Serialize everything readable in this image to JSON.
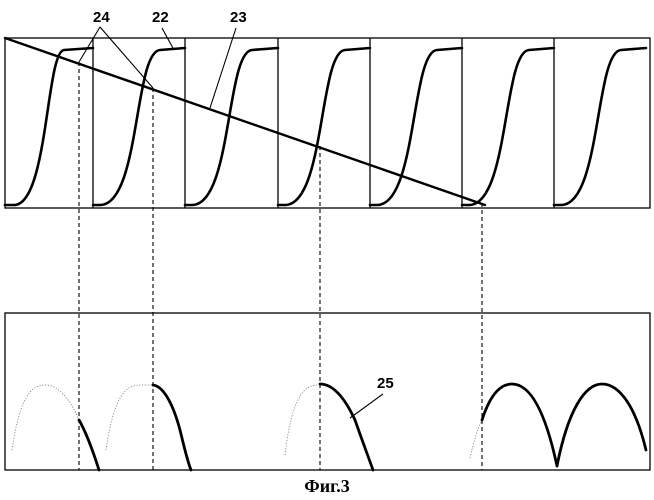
{
  "figure": {
    "caption": "Фиг.3",
    "labels": {
      "l24": "24",
      "l22": "22",
      "l23": "23",
      "l25": "25"
    }
  }
}
